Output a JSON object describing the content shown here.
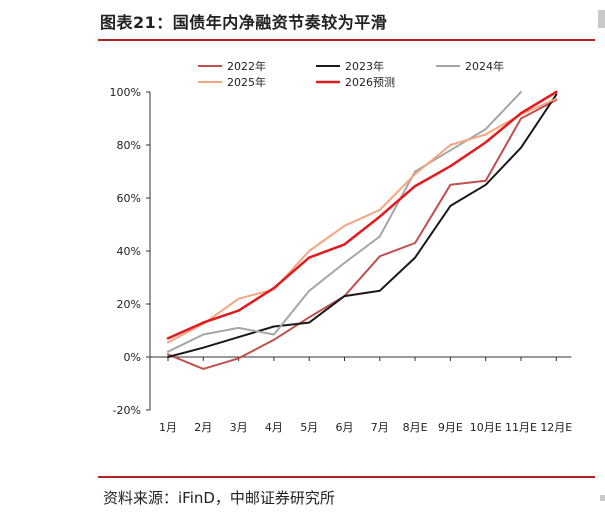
{
  "figure": {
    "title": "图表21：国债年内净融资节奏较为平滑",
    "source": "资料来源：iFinD，中邮证券研究所"
  },
  "chart_data": {
    "type": "line",
    "categories": [
      "1月",
      "2月",
      "3月",
      "4月",
      "5月",
      "6月",
      "7月",
      "8月E",
      "9月E",
      "10月E",
      "11月E",
      "12月E"
    ],
    "ylim": [
      -20,
      100
    ],
    "yticks": [
      -20,
      0,
      20,
      40,
      60,
      80,
      100
    ],
    "ytick_labels": [
      "-20%",
      "0%",
      "20%",
      "40%",
      "60%",
      "80%",
      "100%"
    ],
    "grid": false,
    "legend_position": "top",
    "series": [
      {
        "name": "2022年",
        "color": "#c0504d",
        "width": 2,
        "values": [
          1,
          -4.5,
          -0.5,
          6.5,
          15,
          23,
          38,
          43,
          65,
          66.5,
          90,
          97
        ]
      },
      {
        "name": "2023年",
        "color": "#1a1a1a",
        "width": 2,
        "values": [
          0,
          3.5,
          7.5,
          11.5,
          13,
          23,
          25,
          37.5,
          57,
          65,
          79,
          99
        ]
      },
      {
        "name": "2024年",
        "color": "#a6a6a6",
        "width": 2,
        "values": [
          2,
          8.5,
          11,
          8.5,
          25,
          35.5,
          45.5,
          70,
          78,
          86,
          100,
          null
        ]
      },
      {
        "name": "2025年",
        "color": "#f4a582",
        "width": 2,
        "values": [
          5.5,
          12.5,
          22,
          25.5,
          40,
          49.5,
          55.5,
          69,
          80,
          84,
          91.5,
          97.5
        ]
      },
      {
        "name": "2026预测",
        "color": "#e31a1c",
        "width": 2.5,
        "values": [
          7,
          13,
          17.5,
          26,
          37.5,
          42.5,
          53,
          64.5,
          72,
          81,
          92,
          100
        ]
      }
    ]
  }
}
